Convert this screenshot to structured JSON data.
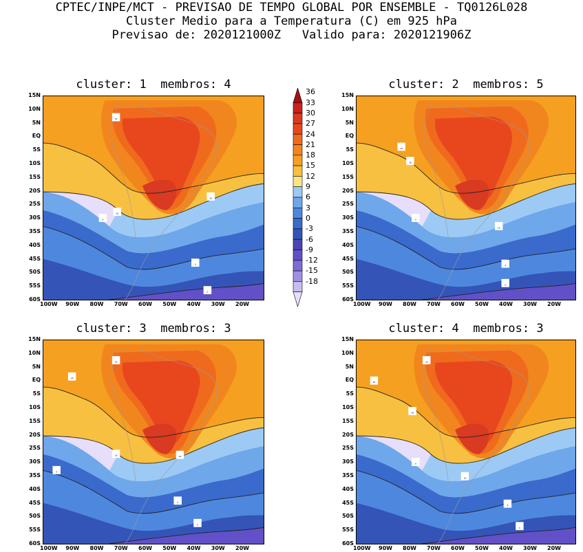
{
  "header": {
    "line1": "CPTEC/INPE/MCT - PREVISAO DE TEMPO GLOBAL POR ENSEMBLE - TQ0126L028",
    "line2": "Cluster Medio para a Temperatura (C) em 925 hPa",
    "line3": "Previsao de: 2020121000Z   Valido para: 2020121906Z"
  },
  "panels": [
    {
      "title": "cluster: 1  membros: 4",
      "contours": [
        "18",
        "18",
        "18",
        "9",
        "9",
        "0"
      ]
    },
    {
      "title": "cluster: 2  membros: 5",
      "contours": [
        "18",
        "18",
        "18",
        "9",
        "9",
        "0"
      ]
    },
    {
      "title": "cluster: 3  membros: 3",
      "contours": [
        "18",
        "18",
        "18",
        "18",
        "9",
        "9",
        "0"
      ]
    },
    {
      "title": "cluster: 4  membros: 3",
      "contours": [
        "18",
        "18",
        "18",
        "18",
        "9",
        "9",
        "0"
      ]
    }
  ],
  "axes": {
    "lat_labels": [
      "15N",
      "10N",
      "5N",
      "EQ",
      "5S",
      "10S",
      "15S",
      "20S",
      "25S",
      "30S",
      "35S",
      "40S",
      "45S",
      "50S",
      "55S",
      "60S"
    ],
    "lon_labels": [
      "100W",
      "90W",
      "80W",
      "70W",
      "60W",
      "50W",
      "40W",
      "30W",
      "20W"
    ]
  },
  "colorbar": {
    "levels": [
      "36",
      "33",
      "30",
      "27",
      "24",
      "21",
      "18",
      "15",
      "12",
      "9",
      "6",
      "3",
      "0",
      "-3",
      "-6",
      "-9",
      "-12",
      "-15",
      "-18"
    ],
    "colors": [
      "#a50f15",
      "#c8241c",
      "#d83a22",
      "#e8471e",
      "#f06a1e",
      "#f2861e",
      "#f5a020",
      "#f8c040",
      "#fbe38a",
      "#9ccaf5",
      "#6ea7ea",
      "#4e88de",
      "#3a6acc",
      "#3454b8",
      "#4a44b8",
      "#6250c8",
      "#7e6cd8",
      "#a090e4",
      "#c8bcf0",
      "#e6defa"
    ]
  }
}
